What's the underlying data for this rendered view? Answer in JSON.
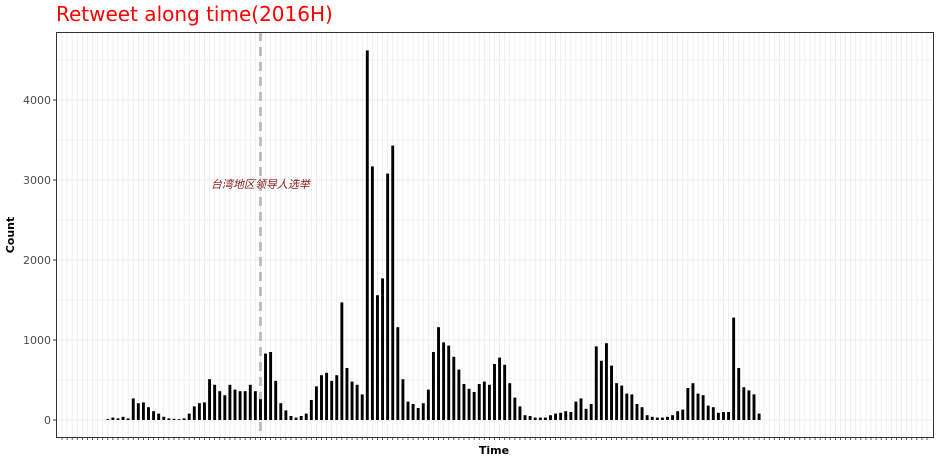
{
  "chart_data": {
    "type": "bar",
    "title": "Retweet along time(2016H)",
    "xlabel": "Time",
    "ylabel": "Count",
    "ylim": [
      0,
      4700
    ],
    "yticks": [
      0,
      1000,
      2000,
      3000,
      4000
    ],
    "grid": true,
    "legend": "none",
    "categories_count": 171,
    "first_bar_index": 9,
    "vline_index": 39,
    "annotation": {
      "text": "台湾地区领导人选举",
      "x_index": 39,
      "y": 2950
    },
    "series": [
      {
        "values": [
          10,
          30,
          20,
          40,
          20,
          270,
          210,
          220,
          160,
          110,
          80,
          40,
          20,
          15,
          10,
          20,
          80,
          170,
          210,
          220,
          510,
          440,
          360,
          310,
          440,
          380,
          360,
          360,
          440,
          360,
          260,
          830,
          850,
          490,
          210,
          120,
          50,
          30,
          50,
          80,
          250,
          420,
          560,
          590,
          490,
          560,
          1470,
          650,
          480,
          440,
          320,
          4620,
          3170,
          1560,
          1770,
          3080,
          3430,
          1160,
          510,
          230,
          200,
          150,
          210,
          380,
          850,
          1160,
          970,
          930,
          790,
          630,
          450,
          390,
          350,
          450,
          480,
          440,
          700,
          780,
          690,
          460,
          280,
          170,
          60,
          50,
          30,
          30,
          30,
          60,
          80,
          90,
          110,
          100,
          230,
          270,
          140,
          200,
          920,
          740,
          960,
          680,
          460,
          430,
          330,
          320,
          200,
          160,
          60,
          40,
          30,
          30,
          40,
          60,
          110,
          130,
          400,
          460,
          330,
          310,
          180,
          160,
          90,
          100,
          100,
          1280,
          650,
          410,
          370,
          320,
          80
        ]
      }
    ]
  }
}
